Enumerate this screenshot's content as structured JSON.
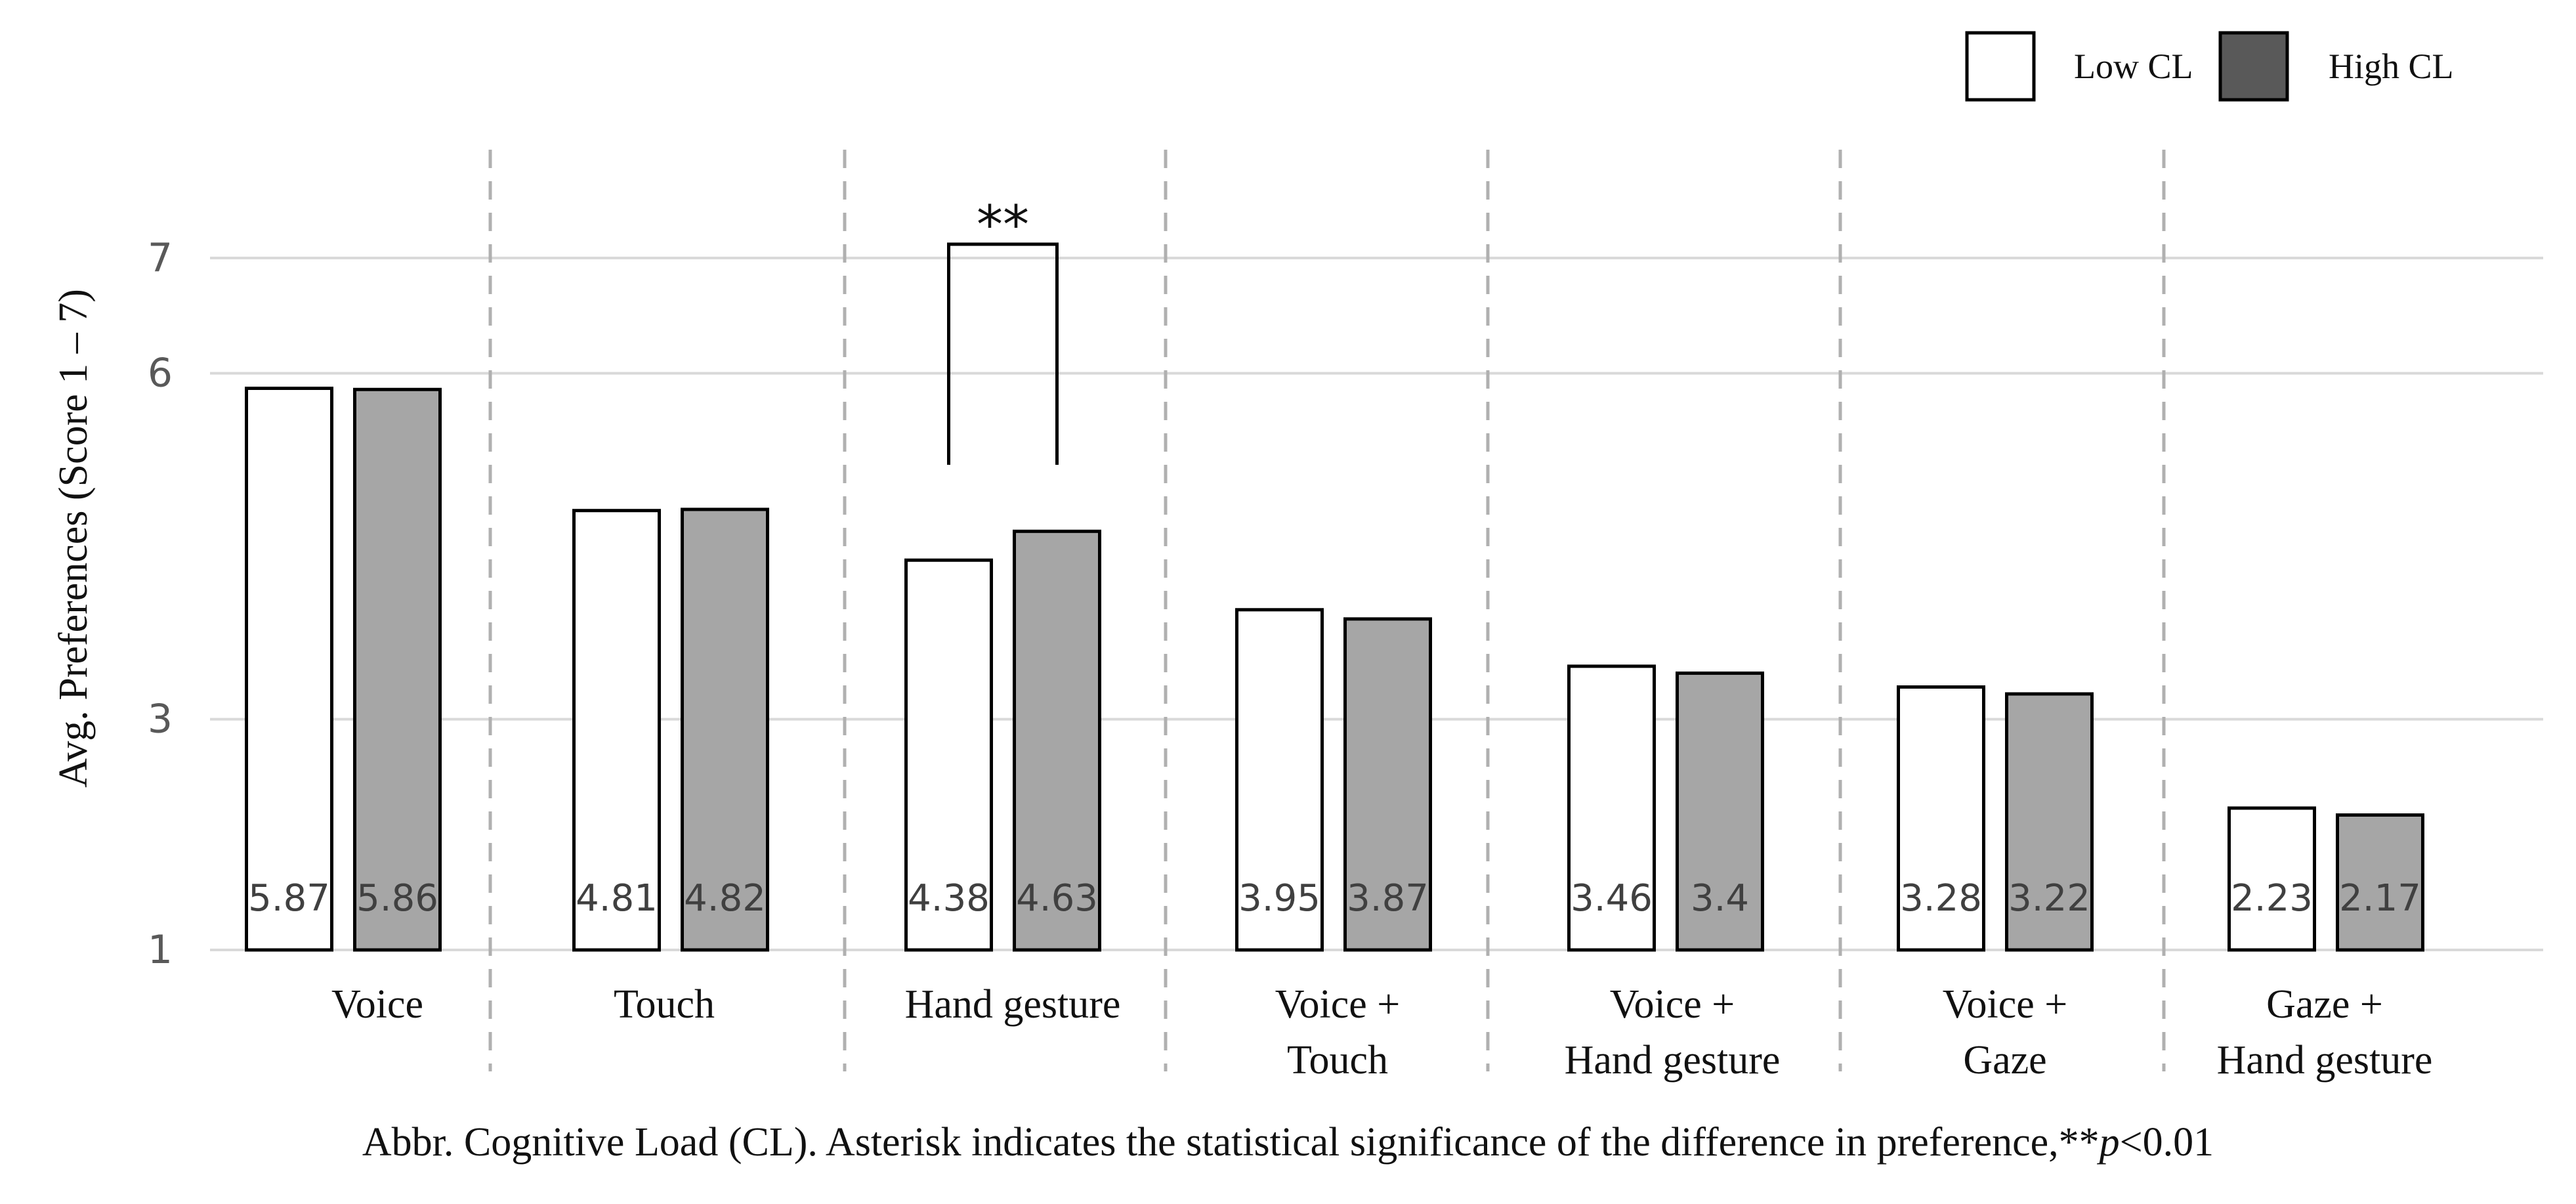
{
  "colors": {
    "low": "#ffffff",
    "high": "#a6a6a6",
    "legend_high": "#595959",
    "grid": "#d9d9d9",
    "separator": "#b0b0b0",
    "stroke": "#000000",
    "value_text": "#404040"
  },
  "chart_data": {
    "type": "bar",
    "ylabel": "Avg. Preferences (Score 1 – 7)",
    "ylim": [
      1,
      7
    ],
    "yticks": [
      "1",
      "3",
      "6",
      "7"
    ],
    "categories": [
      [
        "Voice"
      ],
      [
        "Touch"
      ],
      [
        "Hand gesture"
      ],
      [
        "Voice +",
        "Touch"
      ],
      [
        "Voice +",
        "Hand gesture"
      ],
      [
        "Voice +",
        "Gaze"
      ],
      [
        "Gaze +",
        "Hand gesture"
      ]
    ],
    "series": [
      {
        "name": "Low CL",
        "values": [
          5.87,
          4.81,
          4.38,
          3.95,
          3.46,
          3.28,
          2.23
        ],
        "labels": [
          "5.87",
          "4.81",
          "4.38",
          "3.95",
          "3.46",
          "3.28",
          "2.23"
        ]
      },
      {
        "name": "High CL",
        "values": [
          5.86,
          4.82,
          4.63,
          3.87,
          3.4,
          3.22,
          2.17
        ],
        "labels": [
          "5.86",
          "4.82",
          "4.63",
          "3.87",
          "3.4",
          "3.22",
          "2.17"
        ]
      }
    ],
    "legend": [
      "Low CL",
      "High CL"
    ],
    "legend_position": "top-right",
    "annotations": [
      {
        "category_index": 2,
        "text": "**"
      }
    ]
  },
  "caption": {
    "main": "Abbr. Cognitive Load (CL). Asterisk indicates the statistical significance of the difference in preference,**",
    "p": "p",
    "tail": "<0.01"
  }
}
